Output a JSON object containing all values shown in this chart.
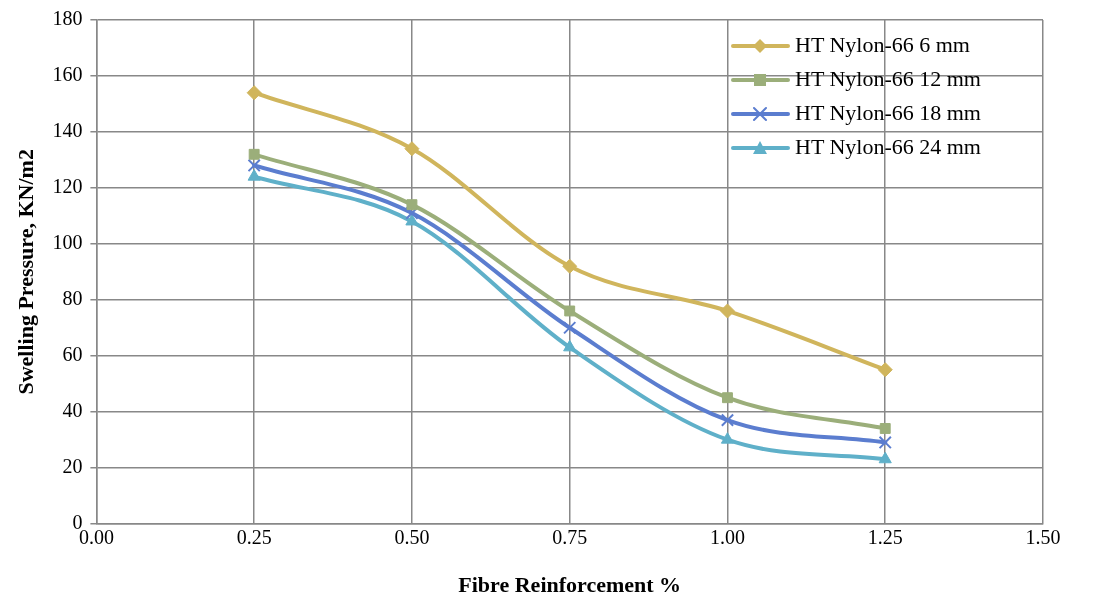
{
  "chart_data": {
    "type": "line",
    "xlabel": "Fibre Reinforcement %",
    "ylabel": "Swelling Pressure, KN/m2",
    "x": [
      0.25,
      0.5,
      0.75,
      1.0,
      1.25
    ],
    "series": [
      {
        "name": "HT Nylon-66 6 mm",
        "color": "#d0b55c",
        "marker": "diamond",
        "values": [
          154,
          134,
          92,
          76,
          55
        ]
      },
      {
        "name": "HT Nylon-66 12 mm",
        "color": "#9bae7a",
        "marker": "square",
        "values": [
          132,
          114,
          76,
          45,
          34
        ]
      },
      {
        "name": "HT Nylon-66 18 mm",
        "color": "#5b7dcf",
        "marker": "cross",
        "values": [
          128,
          111,
          70,
          37,
          29
        ]
      },
      {
        "name": "HT Nylon-66 24 mm",
        "color": "#5fb0c9",
        "marker": "triangle",
        "values": [
          124,
          108,
          63,
          30,
          23
        ]
      }
    ],
    "xlim": [
      0,
      1.5
    ],
    "xticks": [
      {
        "value": 0,
        "label": "0.00"
      },
      {
        "value": 0.25,
        "label": "0.25"
      },
      {
        "value": 0.5,
        "label": "0.50"
      },
      {
        "value": 0.75,
        "label": "0.75"
      },
      {
        "value": 1,
        "label": "1.00"
      },
      {
        "value": 1.25,
        "label": "1.25"
      },
      {
        "value": 1.5,
        "label": "1.50"
      }
    ],
    "ylim": [
      0,
      180
    ],
    "yticks": [
      0,
      20,
      40,
      60,
      80,
      100,
      120,
      140,
      160,
      180
    ],
    "grid": true,
    "legend": "top right",
    "line_style": "solid"
  }
}
